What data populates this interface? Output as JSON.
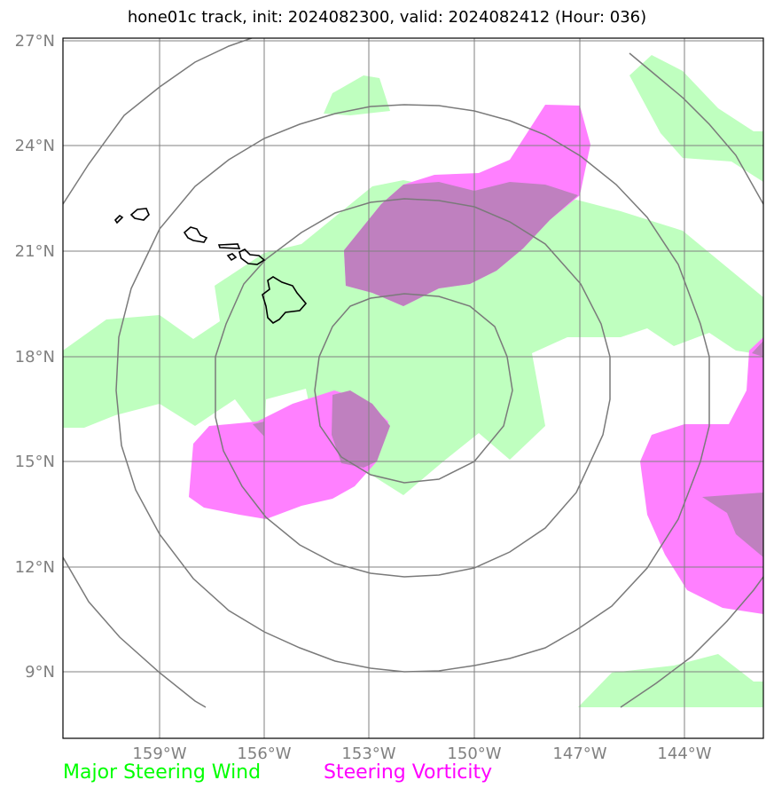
{
  "title": "hone01c track, init: 2024082300, valid: 2024082412 (Hour: 036)",
  "axes": {
    "lat_labels": [
      "27°N",
      "24°N",
      "21°N",
      "18°N",
      "15°N",
      "12°N",
      "9°N"
    ],
    "lon_labels": [
      "159°W",
      "156°W",
      "153°W",
      "150°W",
      "147°W",
      "144°W"
    ],
    "lat_values": [
      27,
      24,
      21,
      18,
      15,
      12,
      9
    ],
    "lon_values": [
      -159,
      -156,
      -153,
      -150,
      -147,
      -144
    ],
    "lat_range": [
      7.1,
      27.1
    ],
    "lon_range": [
      -161.7,
      -141.7
    ],
    "grid": true
  },
  "legend": {
    "wind": "Major Steering Wind",
    "vorticity": "Steering Vorticity"
  },
  "colors": {
    "wind": "#bfffbf",
    "vorticity": "#ff80ff",
    "overlap": "#bf80bf",
    "coast": "#000000",
    "grid": "#808080",
    "rings": "#808080"
  },
  "range_rings": {
    "center": [
      -151.9,
      17.6
    ],
    "count": 4
  }
}
